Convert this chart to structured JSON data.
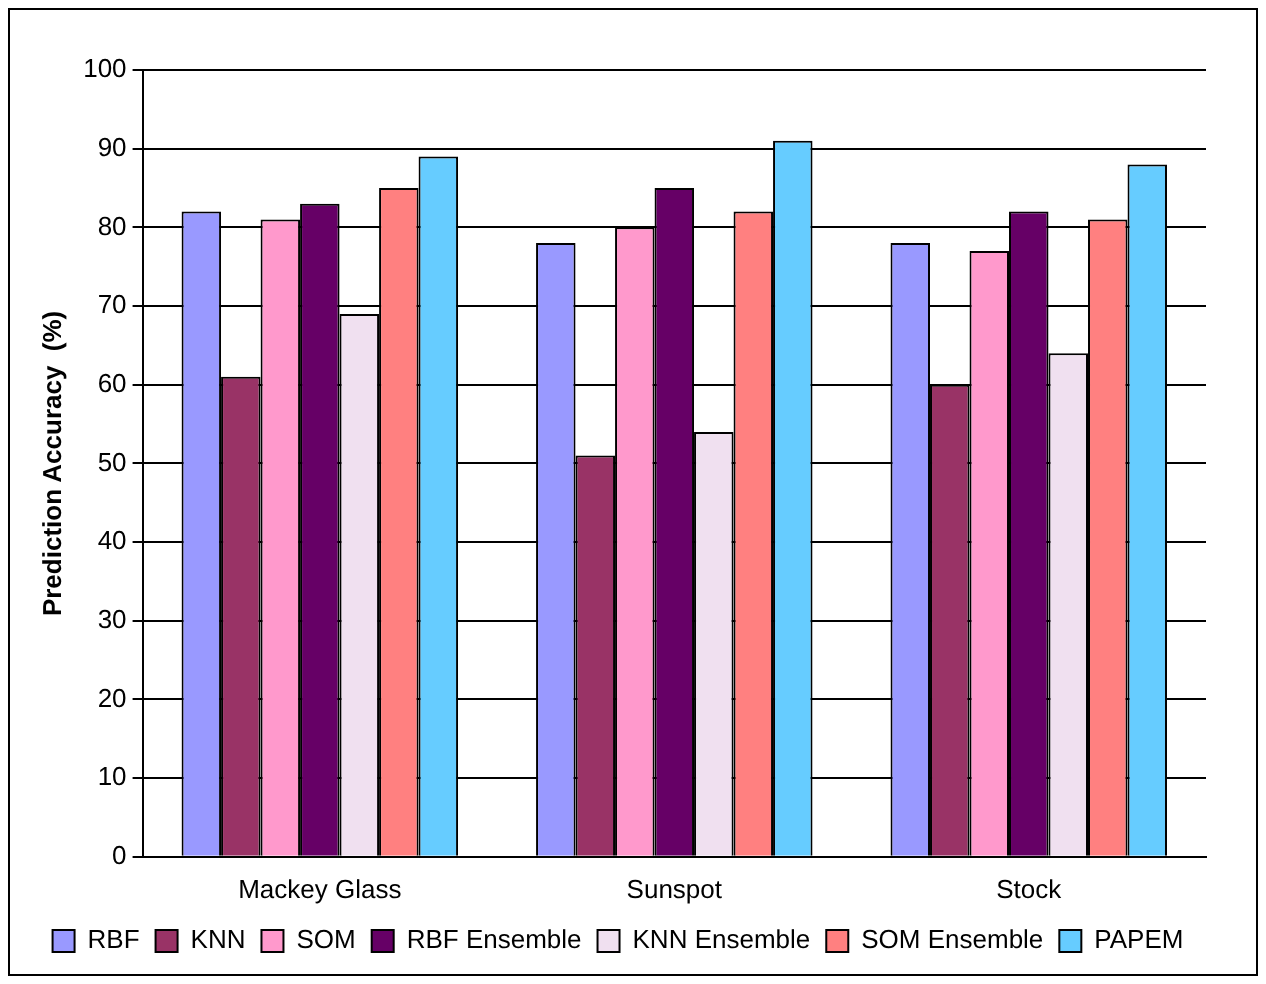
{
  "chart_data": {
    "type": "bar",
    "ylabel": "Prediction Accuracy  (%)",
    "categories": [
      "Mackey Glass",
      "Sunspot",
      "Stock"
    ],
    "series": [
      {
        "name": "RBF",
        "color": "#9999ff",
        "values": [
          82,
          78,
          78
        ]
      },
      {
        "name": "KNN",
        "color": "#993366",
        "values": [
          61,
          51,
          60
        ]
      },
      {
        "name": "SOM",
        "color": "#ff99cc",
        "values": [
          81,
          80,
          77
        ]
      },
      {
        "name": "RBF Ensemble",
        "color": "#660066",
        "values": [
          83,
          85,
          82
        ]
      },
      {
        "name": "KNN Ensemble",
        "color": "#f0e0f0",
        "values": [
          69,
          54,
          64
        ]
      },
      {
        "name": "SOM Ensemble",
        "color": "#ff8080",
        "values": [
          85,
          82,
          81
        ]
      },
      {
        "name": "PAPEM",
        "color": "#66ccff",
        "values": [
          89,
          91,
          88
        ]
      }
    ],
    "ylim": [
      0,
      100
    ],
    "yticks": [
      0,
      10,
      20,
      30,
      40,
      50,
      60,
      70,
      80,
      90,
      100
    ],
    "grid": "y",
    "legend": "bottom"
  }
}
